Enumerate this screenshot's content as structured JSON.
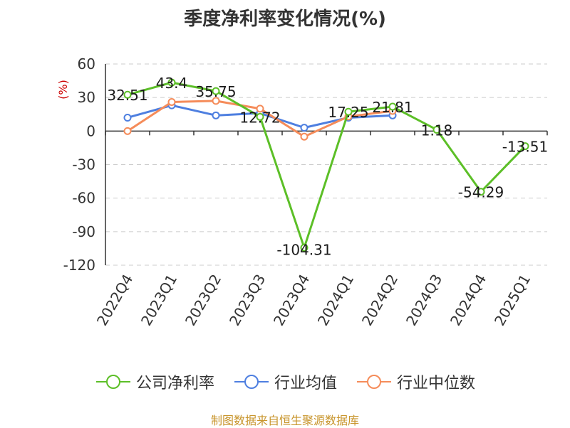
{
  "chart_data": {
    "type": "line",
    "title": "季度净利率变化情况(%)",
    "ylabel": "(%)",
    "xlabel": "",
    "categories": [
      "2022Q4",
      "2023Q1",
      "2023Q2",
      "2023Q3",
      "2023Q4",
      "2024Q1",
      "2024Q2",
      "2024Q3",
      "2024Q4",
      "2025Q1"
    ],
    "ylim": [
      -120,
      60
    ],
    "yticks": [
      60,
      30,
      0,
      -30,
      -60,
      -90,
      -120
    ],
    "grid": true,
    "legend_position": "bottom",
    "series": [
      {
        "name": "公司净利率",
        "color": "#5cbf27",
        "values": [
          32.51,
          43.4,
          35.75,
          12.72,
          -104.31,
          17.25,
          21.81,
          1.18,
          -54.29,
          -13.51
        ],
        "labels": [
          "32.51",
          "43.4",
          "35.75",
          "12.72",
          "-104.31",
          "17.25",
          "21.81",
          "1.18",
          "-54.29",
          "-13.51"
        ]
      },
      {
        "name": "行业均值",
        "color": "#4e7fe0",
        "values": [
          12,
          23,
          14,
          16,
          3,
          12,
          14,
          null,
          null,
          null
        ]
      },
      {
        "name": "行业中位数",
        "color": "#f58c5a",
        "values": [
          0,
          26,
          27,
          20,
          -5,
          13,
          18,
          null,
          null,
          null
        ]
      }
    ]
  },
  "footer": "制图数据来自恒生聚源数据库"
}
